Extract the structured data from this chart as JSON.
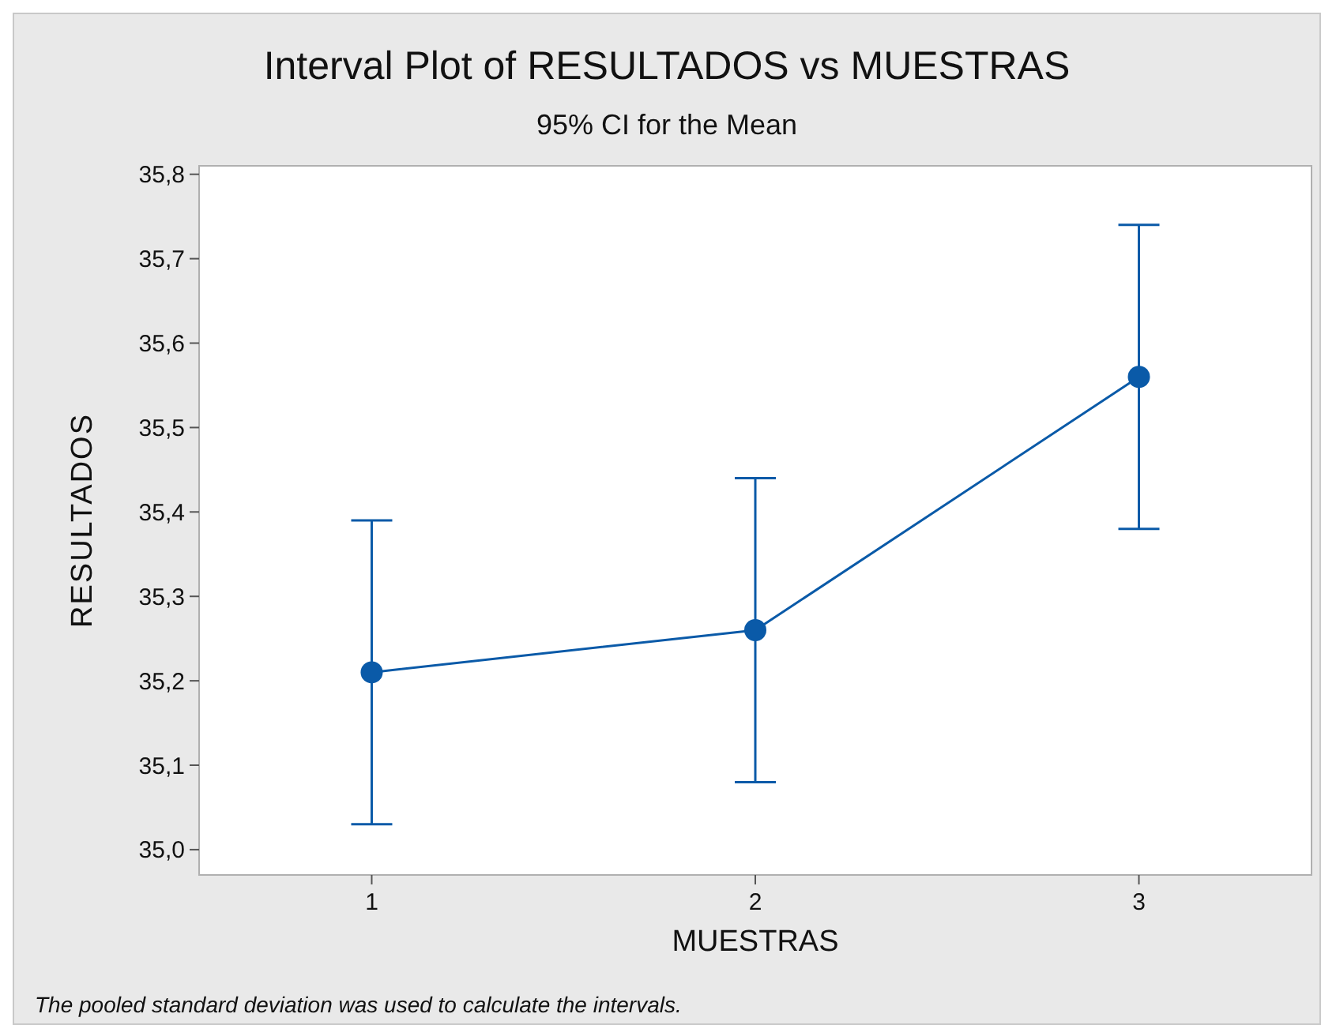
{
  "chart_data": {
    "type": "line",
    "title": "Interval Plot of RESULTADOS vs MUESTRAS",
    "subtitle": "95% CI for the Mean",
    "xlabel": "MUESTRAS",
    "ylabel": "RESULTADOS",
    "categories": [
      "1",
      "2",
      "3"
    ],
    "series": [
      {
        "color": "#0a5aa8",
        "values": [
          35.21,
          35.26,
          35.56
        ],
        "errors": [
          0.18,
          0.18,
          0.18
        ]
      }
    ],
    "ylim": [
      34.97,
      35.81
    ],
    "yticks": [
      {
        "value": 35.0,
        "label": "35,0"
      },
      {
        "value": 35.1,
        "label": "35,1"
      },
      {
        "value": 35.2,
        "label": "35,2"
      },
      {
        "value": 35.3,
        "label": "35,3"
      },
      {
        "value": 35.4,
        "label": "35,4"
      },
      {
        "value": 35.5,
        "label": "35,5"
      },
      {
        "value": 35.6,
        "label": "35,6"
      },
      {
        "value": 35.7,
        "label": "35,7"
      },
      {
        "value": 35.8,
        "label": "35,8"
      }
    ],
    "marker": "circle",
    "line_style": "solid",
    "grid": false,
    "annotations": [
      "The pooled standard deviation was used to calculate the intervals."
    ]
  }
}
